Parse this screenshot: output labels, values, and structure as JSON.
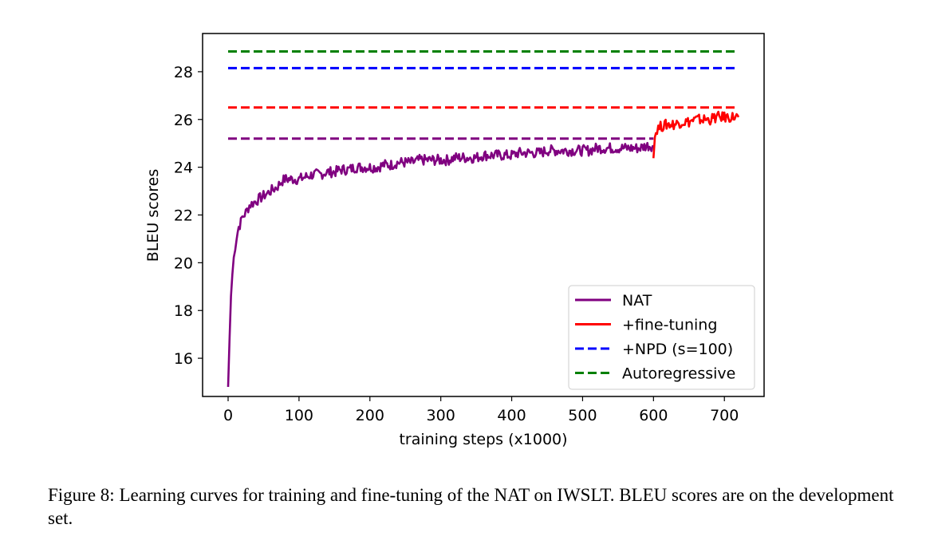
{
  "chart_data": {
    "type": "line",
    "title": "",
    "xlabel": "training steps (x1000)",
    "ylabel": "BLEU scores",
    "xlim": [
      -36,
      756
    ],
    "ylim": [
      14.4,
      29.6
    ],
    "xticks": [
      0,
      100,
      200,
      300,
      400,
      500,
      600,
      700
    ],
    "yticks": [
      16,
      18,
      20,
      22,
      24,
      26,
      28
    ],
    "grid": false,
    "legend_position": "lower-right",
    "series": [
      {
        "name": "NAT",
        "color": "#800080",
        "style": "solid",
        "x": [
          0,
          2,
          4,
          6,
          8,
          10,
          12,
          15,
          18,
          20,
          25,
          30,
          35,
          40,
          45,
          50,
          55,
          60,
          65,
          70,
          75,
          80,
          90,
          100,
          110,
          120,
          130,
          140,
          150,
          160,
          170,
          180,
          190,
          200,
          210,
          220,
          230,
          240,
          250,
          260,
          270,
          280,
          290,
          300,
          310,
          320,
          330,
          340,
          350,
          360,
          370,
          380,
          390,
          400,
          410,
          420,
          430,
          440,
          450,
          460,
          470,
          480,
          490,
          500,
          510,
          520,
          530,
          540,
          550,
          560,
          570,
          580,
          590,
          600
        ],
        "y": [
          14.8,
          16.8,
          18.6,
          19.5,
          20.2,
          20.7,
          21.1,
          21.5,
          21.7,
          21.9,
          22.1,
          22.4,
          22.5,
          22.6,
          22.7,
          22.8,
          22.9,
          23.0,
          23.1,
          23.2,
          23.4,
          23.5,
          23.5,
          23.5,
          23.6,
          23.7,
          23.7,
          23.8,
          23.8,
          23.9,
          23.9,
          24.0,
          24.0,
          24.0,
          24.0,
          24.1,
          24.1,
          24.2,
          24.2,
          24.2,
          24.3,
          24.3,
          24.3,
          24.3,
          24.3,
          24.4,
          24.4,
          24.4,
          24.4,
          24.5,
          24.5,
          24.5,
          24.5,
          24.5,
          24.6,
          24.6,
          24.6,
          24.6,
          24.7,
          24.7,
          24.7,
          24.7,
          24.7,
          24.7,
          24.7,
          24.8,
          24.8,
          24.8,
          24.8,
          24.8,
          24.8,
          24.8,
          24.9,
          24.9
        ]
      },
      {
        "name": "+fine-tuning",
        "color": "#ff0000",
        "style": "solid",
        "x": [
          600,
          602,
          605,
          610,
          620,
          630,
          640,
          650,
          660,
          670,
          680,
          690,
          700,
          710,
          720
        ],
        "y": [
          24.6,
          25.3,
          25.6,
          25.7,
          25.8,
          25.8,
          25.9,
          25.9,
          26.0,
          26.0,
          26.0,
          26.1,
          26.1,
          26.1,
          26.1
        ]
      },
      {
        "name": "+NPD (s=100)",
        "color": "#0000ff",
        "style": "dashed",
        "x": [
          0,
          720
        ],
        "y": [
          28.15,
          28.15
        ]
      },
      {
        "name": "Autoregressive",
        "color": "#008000",
        "style": "dashed",
        "x": [
          0,
          720
        ],
        "y": [
          28.85,
          28.85
        ]
      },
      {
        "name": "",
        "color": "#ff0000",
        "style": "dashed",
        "x": [
          0,
          720
        ],
        "y": [
          26.5,
          26.5
        ]
      },
      {
        "name": "",
        "color": "#800080",
        "style": "dashed",
        "x": [
          0,
          600
        ],
        "y": [
          25.2,
          25.2
        ]
      }
    ]
  },
  "caption": "Figure 8: Learning curves for training and fine-tuning of the NAT on IWSLT. BLEU scores are on the development set."
}
